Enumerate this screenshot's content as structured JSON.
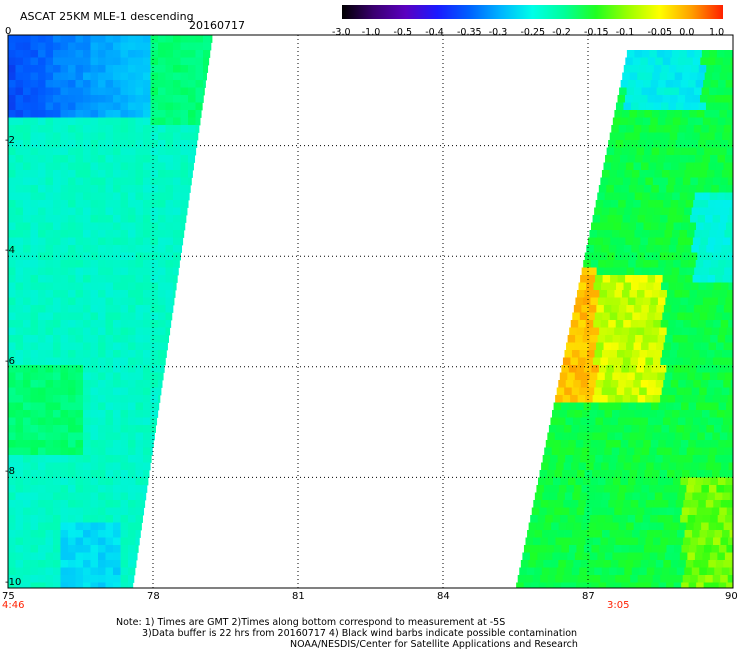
{
  "header": {
    "title": "ASCAT 25KM MLE-1 descending",
    "date": "20160717"
  },
  "colorbar": {
    "labels": [
      "-3.0",
      "-1.0",
      "-0.5",
      "-0.4",
      "-0.35",
      "-0.3",
      "-0.25",
      "-0.2",
      "-0.15",
      "-0.1",
      "-0.05",
      "0.0",
      "1.0"
    ],
    "colors": [
      "#000000",
      "#3a0070",
      "#5a00c0",
      "#1a1aff",
      "#0060ff",
      "#00b4ff",
      "#00ffe8",
      "#00ff9a",
      "#20ff20",
      "#9aff00",
      "#ffff00",
      "#ffa000",
      "#ff2000"
    ]
  },
  "map": {
    "x_ticks": [
      "75",
      "78",
      "81",
      "84",
      "87",
      "90"
    ],
    "y_ticks": [
      "0",
      "-2",
      "-4",
      "-6",
      "-8",
      "-10"
    ],
    "time_left": "4:46",
    "time_right": "3:05",
    "time_color": "#ff2000"
  },
  "notes": {
    "line1": "Note: 1) Times are GMT 2)Times along bottom correspond to measurement at -5S",
    "line2": "3)Data buffer is 22 hrs from 20160717 4) Black wind barbs indicate possible contamination",
    "line3": "NOAA/NESDIS/Center for Satellite Applications and Research"
  }
}
